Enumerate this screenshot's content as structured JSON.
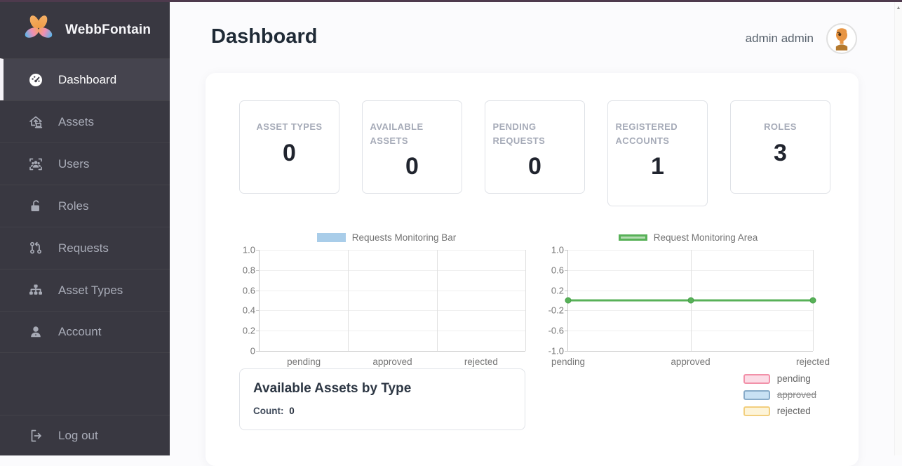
{
  "brand": {
    "name": "WebbFontain"
  },
  "sidebar": {
    "items": [
      {
        "label": "Dashboard",
        "icon": "dashboard-icon",
        "active": true
      },
      {
        "label": "Assets",
        "icon": "assets-icon",
        "active": false
      },
      {
        "label": "Users",
        "icon": "users-icon",
        "active": false
      },
      {
        "label": "Roles",
        "icon": "roles-icon",
        "active": false
      },
      {
        "label": "Requests",
        "icon": "requests-icon",
        "active": false
      },
      {
        "label": "Asset Types",
        "icon": "asset-types-icon",
        "active": false
      },
      {
        "label": "Account",
        "icon": "account-icon",
        "active": false
      }
    ],
    "logout_label": "Log out"
  },
  "header": {
    "title": "Dashboard",
    "user_name": "admin admin"
  },
  "stats": [
    {
      "label": "ASSET TYPES",
      "value": "0"
    },
    {
      "label": "AVAILABLE ASSETS",
      "value": "0"
    },
    {
      "label": "PENDING REQUESTS",
      "value": "0"
    },
    {
      "label": "REGISTERED ACCOUNTS",
      "value": "1"
    },
    {
      "label": "ROLES",
      "value": "3"
    }
  ],
  "chart_data": [
    {
      "type": "bar",
      "title": "Requests Monitoring Bar",
      "categories": [
        "pending",
        "approved",
        "rejected"
      ],
      "values": [
        0,
        0,
        0
      ],
      "ylim": [
        0,
        1
      ],
      "yticks": [
        "1.0",
        "0.8",
        "0.6",
        "0.4",
        "0.2",
        "0"
      ],
      "legend_position": "top",
      "grid": true,
      "bar_color": "#a9cde9"
    },
    {
      "type": "area",
      "title": "Request Monitoring Area",
      "categories": [
        "pending",
        "approved",
        "rejected"
      ],
      "values": [
        0,
        0,
        0
      ],
      "ylim": [
        -1,
        1
      ],
      "yticks": [
        "1.0",
        "0.6",
        "0.2",
        "-0.2",
        "-0.6",
        "-1.0"
      ],
      "legend_position": "top",
      "grid": true,
      "line_color": "#58b158",
      "fill_color": "#b5dcb3"
    }
  ],
  "assets_by_type": {
    "title": "Available Assets by Type",
    "count_label": "Count:",
    "count_value": "0"
  },
  "pie_legend": {
    "items": [
      {
        "label": "pending",
        "fill": "#fbdce6",
        "border": "#f291a9",
        "struck": false
      },
      {
        "label": "approved",
        "fill": "#c8e1f4",
        "border": "#88abc9",
        "struck": true
      },
      {
        "label": "rejected",
        "fill": "#fdf4d9",
        "border": "#f2cf7e",
        "struck": false
      }
    ]
  },
  "scrollbar": {
    "up_glyph": "▲"
  }
}
